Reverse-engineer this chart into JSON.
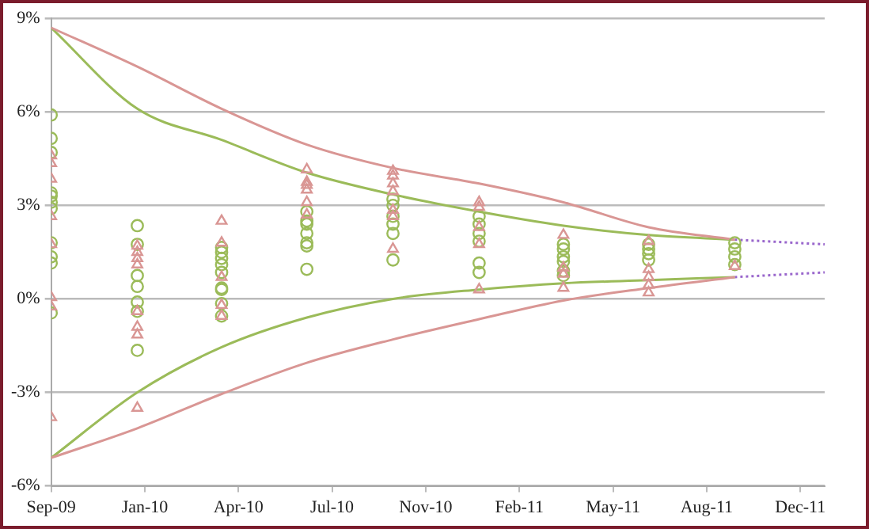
{
  "chart_data": {
    "type": "scatter",
    "xlim": [
      "2009-09-30",
      "2012-01-04"
    ],
    "xticks": [
      {
        "value": "2009-09-30",
        "label": "Sep-09"
      },
      {
        "value": "2010-01-08",
        "label": "Jan-10"
      },
      {
        "value": "2010-04-18",
        "label": "Apr-10"
      },
      {
        "value": "2010-07-27",
        "label": "Jul-10"
      },
      {
        "value": "2010-11-04",
        "label": "Nov-10"
      },
      {
        "value": "2011-02-12",
        "label": "Feb-11"
      },
      {
        "value": "2011-05-23",
        "label": "May-11"
      },
      {
        "value": "2011-08-31",
        "label": "Aug-11"
      },
      {
        "value": "2011-12-09",
        "label": "Dec-11"
      }
    ],
    "ylim": [
      -6,
      9
    ],
    "yticks": [
      {
        "value": -6,
        "label": "-6%"
      },
      {
        "value": -3,
        "label": "-3%"
      },
      {
        "value": 0,
        "label": "0%"
      },
      {
        "value": 3,
        "label": "3%"
      },
      {
        "value": 6,
        "label": "6%"
      },
      {
        "value": 9,
        "label": "9%"
      }
    ],
    "grid": "y",
    "legend": false,
    "series": [
      {
        "type": "line",
        "marker": "none",
        "line_style": "solid",
        "color": "#d99694",
        "x": [
          "2009-09-30",
          "2009-12-31",
          "2010-03-31",
          "2010-06-30",
          "2010-09-30",
          "2010-12-31",
          "2011-03-31",
          "2011-06-30",
          "2011-09-30"
        ],
        "values": [
          8.7,
          7.45,
          6.1,
          4.95,
          4.2,
          3.7,
          3.1,
          2.3,
          1.9
        ]
      },
      {
        "type": "line",
        "marker": "none",
        "line_style": "solid",
        "color": "#d99694",
        "x": [
          "2009-09-30",
          "2009-12-31",
          "2010-03-31",
          "2010-06-30",
          "2010-09-30",
          "2010-12-31",
          "2011-03-31",
          "2011-06-30",
          "2011-09-30"
        ],
        "values": [
          -5.1,
          -4.15,
          -3.05,
          -2.05,
          -1.3,
          -0.65,
          -0.05,
          0.35,
          0.7
        ]
      },
      {
        "type": "line",
        "marker": "none",
        "line_style": "solid",
        "color": "#9bbb59",
        "x": [
          "2009-09-30",
          "2009-12-31",
          "2010-03-31",
          "2010-06-30",
          "2010-09-30",
          "2010-12-31",
          "2011-03-31",
          "2011-06-30",
          "2011-09-30"
        ],
        "values": [
          8.7,
          6.1,
          5.1,
          4.05,
          3.35,
          2.8,
          2.35,
          2.05,
          1.9
        ]
      },
      {
        "type": "line",
        "marker": "none",
        "line_style": "solid",
        "color": "#9bbb59",
        "x": [
          "2009-09-30",
          "2009-12-31",
          "2010-03-31",
          "2010-06-30",
          "2010-09-30",
          "2010-12-31",
          "2011-03-31",
          "2011-06-30",
          "2011-09-30"
        ],
        "values": [
          -5.1,
          -3.0,
          -1.55,
          -0.6,
          0.0,
          0.3,
          0.5,
          0.6,
          0.7
        ]
      },
      {
        "type": "line",
        "marker": "none",
        "line_style": "dotted",
        "color": "#9966cc",
        "x": [
          "2011-09-30",
          "2012-01-04"
        ],
        "values": [
          1.9,
          1.75
        ]
      },
      {
        "type": "line",
        "marker": "none",
        "line_style": "dotted",
        "color": "#9966cc",
        "x": [
          "2011-09-30",
          "2012-01-04"
        ],
        "values": [
          0.7,
          0.85
        ]
      },
      {
        "marker": "circle",
        "color": "#9bbb59",
        "x": [
          "2009-09-30",
          "2009-09-30",
          "2009-09-30",
          "2009-09-30",
          "2009-09-30",
          "2009-09-30",
          "2009-09-30",
          "2009-09-30",
          "2009-09-30",
          "2009-09-30",
          "2009-09-30",
          "2009-12-31",
          "2009-12-31",
          "2009-12-31",
          "2009-12-31",
          "2009-12-31",
          "2009-12-31",
          "2009-12-31",
          "2010-03-31",
          "2010-03-31",
          "2010-03-31",
          "2010-03-31",
          "2010-03-31",
          "2010-03-31",
          "2010-03-31",
          "2010-03-31",
          "2010-03-31",
          "2010-06-30",
          "2010-06-30",
          "2010-06-30",
          "2010-06-30",
          "2010-06-30",
          "2010-06-30",
          "2010-06-30",
          "2010-09-30",
          "2010-09-30",
          "2010-09-30",
          "2010-09-30",
          "2010-09-30",
          "2010-09-30",
          "2010-12-31",
          "2010-12-31",
          "2010-12-31",
          "2010-12-31",
          "2010-12-31",
          "2010-12-31",
          "2011-03-31",
          "2011-03-31",
          "2011-03-31",
          "2011-03-31",
          "2011-03-31",
          "2011-03-31",
          "2011-06-30",
          "2011-06-30",
          "2011-06-30",
          "2011-06-30",
          "2011-09-30",
          "2011-09-30",
          "2011-09-30",
          "2011-09-30"
        ],
        "values": [
          5.9,
          5.15,
          4.7,
          3.4,
          3.3,
          3.1,
          2.9,
          1.8,
          1.35,
          1.15,
          -0.45,
          2.35,
          1.75,
          0.75,
          0.4,
          -0.1,
          -0.4,
          -1.65,
          1.65,
          1.5,
          1.3,
          1.1,
          0.85,
          0.35,
          0.3,
          -0.15,
          -0.55,
          2.8,
          2.5,
          2.4,
          2.1,
          1.8,
          1.7,
          0.95,
          3.2,
          3.0,
          2.65,
          2.4,
          2.1,
          1.25,
          2.65,
          2.4,
          2.1,
          1.85,
          1.15,
          0.85,
          1.75,
          1.6,
          1.35,
          1.2,
          0.9,
          0.75,
          1.75,
          1.6,
          1.45,
          1.25,
          1.8,
          1.6,
          1.35,
          1.1
        ]
      },
      {
        "marker": "triangle",
        "color": "#d99694",
        "x": [
          "2009-09-30",
          "2009-09-30",
          "2009-09-30",
          "2009-09-30",
          "2009-09-30",
          "2009-09-30",
          "2009-09-30",
          "2009-09-30",
          "2009-12-31",
          "2009-12-31",
          "2009-12-31",
          "2009-12-31",
          "2009-12-31",
          "2009-12-31",
          "2009-12-31",
          "2009-12-31",
          "2010-03-31",
          "2010-03-31",
          "2010-03-31",
          "2010-03-31",
          "2010-03-31",
          "2010-06-30",
          "2010-06-30",
          "2010-06-30",
          "2010-06-30",
          "2010-06-30",
          "2010-06-30",
          "2010-09-30",
          "2010-09-30",
          "2010-09-30",
          "2010-09-30",
          "2010-09-30",
          "2010-09-30",
          "2010-09-30",
          "2010-12-31",
          "2010-12-31",
          "2010-12-31",
          "2010-12-31",
          "2010-12-31",
          "2011-03-31",
          "2011-03-31",
          "2011-03-31",
          "2011-03-31",
          "2011-06-30",
          "2011-06-30",
          "2011-06-30",
          "2011-06-30",
          "2011-06-30",
          "2011-09-30"
        ],
        "values": [
          4.6,
          4.35,
          3.85,
          2.65,
          1.75,
          0.05,
          -0.25,
          -3.8,
          1.7,
          1.5,
          1.3,
          1.1,
          -0.4,
          -0.9,
          -1.15,
          -3.5,
          2.5,
          1.8,
          0.7,
          -0.2,
          -0.55,
          4.15,
          3.75,
          3.65,
          3.5,
          3.1,
          2.7,
          4.1,
          3.95,
          3.7,
          3.45,
          2.85,
          2.65,
          1.6,
          3.1,
          2.95,
          2.3,
          1.75,
          0.3,
          2.05,
          1.0,
          0.8,
          0.35,
          1.85,
          0.95,
          0.7,
          0.45,
          0.2,
          1.05
        ]
      }
    ]
  }
}
